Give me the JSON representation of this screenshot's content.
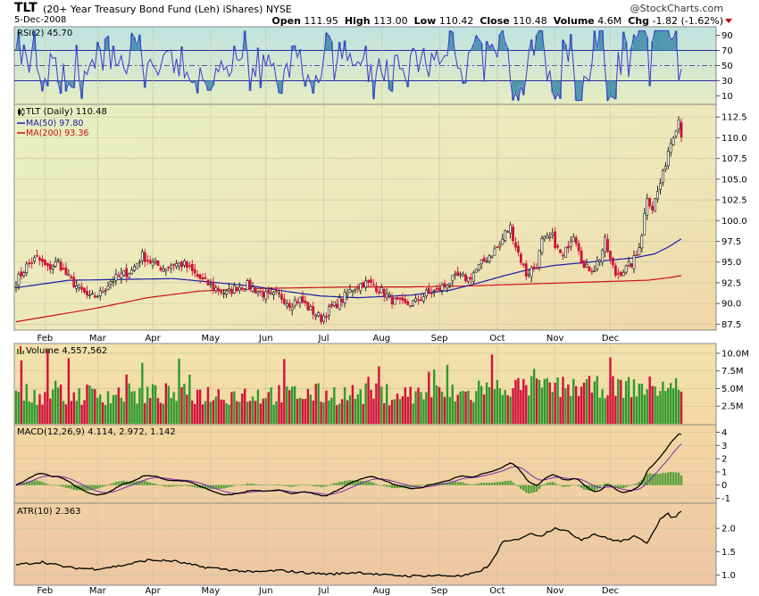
{
  "header": {
    "symbol": "TLT",
    "name": "(20+ Year Treasury Bond Fund (Leh) iShares)",
    "exchange": "NYSE",
    "date": "5-Dec-2008",
    "watermark": "@StockCharts.com",
    "quote": [
      {
        "label": "Open",
        "value": "111.95"
      },
      {
        "label": "High",
        "value": "113.00"
      },
      {
        "label": "Low",
        "value": "110.42"
      },
      {
        "label": "Close",
        "value": "110.48"
      },
      {
        "label": "Volume",
        "value": "4.6M"
      },
      {
        "label": "Chg",
        "value": "-1.82 (-1.62%)"
      }
    ],
    "change_color": "#c00000"
  },
  "colors": {
    "up": "#2e9a2e",
    "down": "#d0103a",
    "ma50": "#1a1aaa",
    "ma200": "#cc1111",
    "rsi": "#3a3acc",
    "rsi_fill": "#3a8aa8",
    "macd_signal": "#7a2ab0",
    "macd_hist": "#5aa03a"
  },
  "chart_data": {
    "type": "line",
    "months": [
      "Feb",
      "Mar",
      "Apr",
      "May",
      "Jun",
      "Jul",
      "Aug",
      "Sep",
      "Oct",
      "Nov",
      "Dec"
    ],
    "rsi": {
      "label": "RSI(2) 45.70",
      "ticks": [
        "90",
        "70",
        "50",
        "30",
        "10"
      ],
      "ylim": [
        0,
        100
      ],
      "levels": [
        70,
        50,
        30
      ]
    },
    "price": {
      "label": "TLT (Daily) 110.48",
      "ma50_label": "MA(50) 97.80",
      "ma200_label": "MA(200) 93.36",
      "ticks": [
        "112.5",
        "110.0",
        "107.5",
        "105.0",
        "102.5",
        "100.0",
        "97.5",
        "95.0",
        "92.5",
        "90.0",
        "87.5"
      ],
      "ylim": [
        87.0,
        113.7
      ],
      "anchors": [
        [
          0,
          92.6
        ],
        [
          4,
          94.5
        ],
        [
          8,
          95.5
        ],
        [
          12,
          94.2
        ],
        [
          16,
          95.0
        ],
        [
          20,
          93.0
        ],
        [
          24,
          91.8
        ],
        [
          28,
          90.6
        ],
        [
          32,
          91.2
        ],
        [
          36,
          92.7
        ],
        [
          40,
          93.4
        ],
        [
          44,
          94.0
        ],
        [
          48,
          95.8
        ],
        [
          52,
          94.8
        ],
        [
          56,
          94.3
        ],
        [
          60,
          94.8
        ],
        [
          64,
          94.7
        ],
        [
          68,
          93.5
        ],
        [
          72,
          92.5
        ],
        [
          76,
          91.8
        ],
        [
          80,
          91.2
        ],
        [
          84,
          92.0
        ],
        [
          88,
          92.2
        ],
        [
          92,
          91.5
        ],
        [
          96,
          90.8
        ],
        [
          100,
          91.0
        ],
        [
          104,
          90.0
        ],
        [
          108,
          90.5
        ],
        [
          112,
          89.2
        ],
        [
          116,
          88.2
        ],
        [
          120,
          89.5
        ],
        [
          124,
          90.5
        ],
        [
          128,
          91.8
        ],
        [
          132,
          92.5
        ],
        [
          136,
          92.2
        ],
        [
          140,
          91.2
        ],
        [
          144,
          90.2
        ],
        [
          148,
          89.8
        ],
        [
          152,
          90.2
        ],
        [
          156,
          91.2
        ],
        [
          160,
          91.5
        ],
        [
          164,
          92.5
        ],
        [
          168,
          93.2
        ],
        [
          172,
          93.0
        ],
        [
          176,
          94.4
        ],
        [
          180,
          95.8
        ],
        [
          184,
          97.0
        ],
        [
          186,
          98.5
        ],
        [
          188,
          99.2
        ],
        [
          190,
          97.0
        ],
        [
          194,
          93.5
        ],
        [
          198,
          94.8
        ],
        [
          200,
          97.5
        ],
        [
          204,
          98.0
        ],
        [
          206,
          96.5
        ],
        [
          208,
          95.5
        ],
        [
          210,
          97.2
        ],
        [
          212,
          98.5
        ],
        [
          214,
          96.8
        ],
        [
          216,
          94.2
        ],
        [
          220,
          94.3
        ],
        [
          222,
          95.5
        ],
        [
          224,
          97.5
        ],
        [
          226,
          95.2
        ],
        [
          228,
          93.5
        ],
        [
          232,
          94.2
        ],
        [
          234,
          94.8
        ],
        [
          236,
          95.8
        ],
        [
          238,
          98.5
        ],
        [
          240,
          103.0
        ],
        [
          242,
          101.5
        ],
        [
          244,
          103.5
        ],
        [
          246,
          105.5
        ],
        [
          248,
          108.5
        ],
        [
          250,
          110.5
        ],
        [
          252,
          112.2
        ],
        [
          253,
          110.5
        ]
      ],
      "ma50": [
        [
          0,
          91.9
        ],
        [
          20,
          92.8
        ],
        [
          40,
          92.9
        ],
        [
          60,
          93.0
        ],
        [
          70,
          92.7
        ],
        [
          90,
          92.1
        ],
        [
          104,
          91.4
        ],
        [
          116,
          90.9
        ],
        [
          130,
          90.7
        ],
        [
          150,
          91.0
        ],
        [
          165,
          91.6
        ],
        [
          175,
          92.4
        ],
        [
          185,
          93.3
        ],
        [
          195,
          94.1
        ],
        [
          205,
          94.6
        ],
        [
          215,
          94.9
        ],
        [
          225,
          95.2
        ],
        [
          235,
          95.5
        ],
        [
          243,
          96.0
        ],
        [
          248,
          96.8
        ],
        [
          253,
          97.8
        ]
      ],
      "ma200": [
        [
          0,
          87.8
        ],
        [
          30,
          89.4
        ],
        [
          50,
          90.7
        ],
        [
          70,
          91.5
        ],
        [
          90,
          91.8
        ],
        [
          110,
          91.9
        ],
        [
          130,
          92.0
        ],
        [
          150,
          92.0
        ],
        [
          170,
          92.1
        ],
        [
          190,
          92.3
        ],
        [
          210,
          92.5
        ],
        [
          230,
          92.7
        ],
        [
          240,
          92.8
        ],
        [
          248,
          93.1
        ],
        [
          253,
          93.36
        ]
      ]
    },
    "volume": {
      "label": "Volume 4,557,562",
      "ticks": [
        "10.0M",
        "7.5M",
        "5.0M",
        "2.5M"
      ],
      "ylim": [
        0,
        11.0
      ]
    },
    "macd": {
      "label": "MACD(12,26,9) 4.114, 2.972, 1.142",
      "ticks": [
        "4",
        "3",
        "2",
        "1",
        "0",
        "-1"
      ],
      "ylim": [
        -1.3,
        4.3
      ]
    },
    "atr": {
      "label": "ATR(10) 2.363",
      "ticks": [
        "2.0",
        "1.5",
        "1.0"
      ],
      "ylim": [
        0.8,
        2.5
      ],
      "anchors": [
        [
          0,
          1.22
        ],
        [
          10,
          1.28
        ],
        [
          20,
          1.16
        ],
        [
          30,
          1.13
        ],
        [
          40,
          1.2
        ],
        [
          50,
          1.32
        ],
        [
          60,
          1.3
        ],
        [
          70,
          1.18
        ],
        [
          80,
          1.12
        ],
        [
          90,
          1.06
        ],
        [
          100,
          1.1
        ],
        [
          110,
          1.05
        ],
        [
          120,
          1.02
        ],
        [
          130,
          1.06
        ],
        [
          140,
          1.0
        ],
        [
          150,
          0.98
        ],
        [
          160,
          0.99
        ],
        [
          170,
          0.98
        ],
        [
          175,
          1.05
        ],
        [
          180,
          1.2
        ],
        [
          185,
          1.7
        ],
        [
          190,
          1.75
        ],
        [
          195,
          1.88
        ],
        [
          200,
          1.85
        ],
        [
          205,
          2.02
        ],
        [
          210,
          1.92
        ],
        [
          215,
          1.76
        ],
        [
          220,
          1.88
        ],
        [
          225,
          1.78
        ],
        [
          230,
          1.72
        ],
        [
          235,
          1.82
        ],
        [
          240,
          1.7
        ],
        [
          245,
          2.2
        ],
        [
          248,
          2.3
        ],
        [
          250,
          2.22
        ],
        [
          253,
          2.363
        ]
      ]
    }
  }
}
